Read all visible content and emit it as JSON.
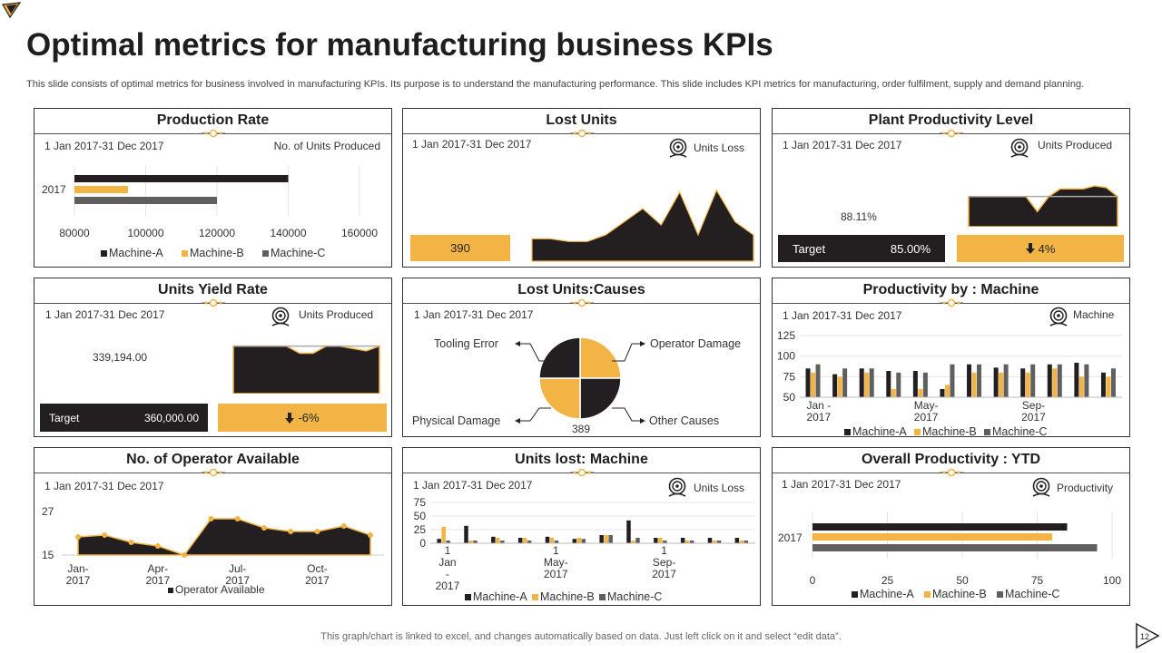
{
  "title": "Optimal metrics for manufacturing business KPIs",
  "subtitle": "This slide consists of optimal metrics for business involved in manufacturing KPIs. Its purpose is to understand the manufacturing performance. This slide includes KPI metrics for manufacturing, order fulfilment, supply and demand planning.",
  "footer": "This graph/chart is linked to excel,  and changes automatically based on data. Just left click on it and select “edit data”.",
  "page_number": "12",
  "colors": {
    "dark": "#231f20",
    "gold": "#f2b445",
    "gray": "#5f5f5f"
  },
  "panels": {
    "production_rate": {
      "title": "Production Rate",
      "date": "1 Jan 2017-31 Dec 2017",
      "label": "No. of Units Produced"
    },
    "lost_units": {
      "title": "Lost Units",
      "date": "1 Jan 2017-31 Dec 2017",
      "label": "Units Loss",
      "icon": "target-icon",
      "value": "390"
    },
    "plant_productivity": {
      "title": "Plant Productivity Level",
      "date": "1 Jan 2017-31 Dec 2017",
      "label": "Units Produced",
      "icon": "target-icon",
      "value": "88.11%",
      "target_label": "Target",
      "target_value": "85.00%",
      "change": "4%"
    },
    "units_yield": {
      "title": "Units Yield Rate",
      "date": "1 Jan 2017-31 Dec 2017",
      "label": "Units Produced",
      "icon": "target-icon",
      "value": "339,194.00",
      "target_label": "Target",
      "target_value": "360,000.00",
      "change": "-6%"
    },
    "lost_causes": {
      "title": "Lost Units:Causes",
      "date": "1 Jan 2017-31 Dec 2017",
      "causes": [
        "Tooling Error",
        "Operator Damage",
        "Physical Damage",
        "Other Causes"
      ],
      "total": "389"
    },
    "prod_machine": {
      "title": "Productivity by : Machine",
      "date": "1 Jan 2017-31 Dec 2017",
      "label": "Machine",
      "icon": "target-icon"
    },
    "operators": {
      "title": "No. of Operator Available",
      "date": "1 Jan 2017-31 Dec 2017"
    },
    "units_lost_machine": {
      "title": "Units lost: Machine",
      "date": "1 Jan 2017-31 Dec 2017",
      "label": "Units Loss",
      "icon": "target-icon"
    },
    "overall": {
      "title": "Overall Productivity : YTD",
      "date": "1 Jan 2017-31 Dec 2017",
      "label": "Productivity",
      "icon": "target-icon"
    }
  },
  "chart_data": [
    {
      "id": "production_rate",
      "type": "bar",
      "orientation": "horizontal",
      "categories": [
        "2017"
      ],
      "series": [
        {
          "name": "Machine-A",
          "values": [
            140000
          ]
        },
        {
          "name": "Machine-B",
          "values": [
            95000
          ]
        },
        {
          "name": "Machine-C",
          "values": [
            120000
          ]
        }
      ],
      "xlim": [
        80000,
        160000
      ],
      "xticks": [
        "80000",
        "100000",
        "120000",
        "140000",
        "160000"
      ],
      "legend": "bottom"
    },
    {
      "id": "lost_units",
      "type": "area",
      "values": [
        34,
        34,
        30,
        30,
        40,
        60,
        80,
        55,
        105,
        40,
        108,
        60,
        40
      ]
    },
    {
      "id": "plant_productivity",
      "type": "area",
      "values": [
        90,
        90,
        90,
        90,
        90,
        90,
        80,
        90,
        95,
        95,
        95,
        97,
        96,
        90
      ]
    },
    {
      "id": "units_yield",
      "type": "area",
      "values": [
        100,
        100,
        100,
        100,
        100,
        85,
        85,
        100,
        100,
        95,
        90,
        100
      ]
    },
    {
      "id": "lost_causes",
      "type": "pie",
      "categories": [
        "Tooling Error",
        "Operator Damage",
        "Other Causes",
        "Physical Damage"
      ],
      "values": [
        25,
        25,
        25,
        25
      ]
    },
    {
      "id": "prod_machine",
      "type": "bar",
      "x_ticks": [
        "Jan -\n2017",
        "May-\n2017",
        "Sep-\n2017"
      ],
      "ylim": [
        50,
        125
      ],
      "yticks": [
        "50",
        "75",
        "100",
        "125"
      ],
      "series": [
        {
          "name": "Machine-A",
          "values": [
            85,
            78,
            85,
            82,
            82,
            60,
            90,
            86,
            85,
            90,
            92,
            80
          ]
        },
        {
          "name": "Machine-B",
          "values": [
            80,
            75,
            80,
            60,
            60,
            65,
            80,
            80,
            80,
            85,
            75,
            75
          ]
        },
        {
          "name": "Machine-C",
          "values": [
            90,
            85,
            85,
            80,
            80,
            90,
            90,
            90,
            90,
            90,
            90,
            85
          ]
        }
      ],
      "legend": "bottom"
    },
    {
      "id": "operators",
      "type": "area",
      "x_ticks": [
        "Jan-\n2017",
        "Apr-\n2017",
        "Jul-\n2017",
        "Oct-\n2017"
      ],
      "ylim": [
        15,
        27
      ],
      "yticks": [
        "15",
        "27"
      ],
      "series": [
        {
          "name": "Operator Available",
          "values": [
            20,
            20.5,
            18.5,
            17.5,
            15,
            25,
            25,
            22.5,
            21.5,
            21.5,
            23,
            20.5
          ]
        }
      ],
      "legend": "bottom"
    },
    {
      "id": "units_lost_machine",
      "type": "bar",
      "x_ticks": [
        "1\nJan\n-\n2017",
        "1\nMay-\n2017",
        "1\nSep-\n2017"
      ],
      "ylim": [
        0,
        75
      ],
      "yticks": [
        "0",
        "25",
        "50",
        "75"
      ],
      "series": [
        {
          "name": "Machine-A",
          "values": [
            8,
            32,
            12,
            10,
            12,
            8,
            15,
            42,
            10,
            10,
            10,
            10
          ]
        },
        {
          "name": "Machine-B",
          "values": [
            30,
            5,
            10,
            10,
            10,
            10,
            15,
            5,
            10,
            5,
            5,
            5
          ]
        },
        {
          "name": "Machine-C",
          "values": [
            5,
            5,
            5,
            5,
            5,
            8,
            15,
            10,
            5,
            5,
            5,
            5
          ]
        }
      ],
      "legend": "bottom"
    },
    {
      "id": "overall",
      "type": "bar",
      "orientation": "horizontal",
      "categories": [
        "2017"
      ],
      "series": [
        {
          "name": "Machine-A",
          "values": [
            85
          ]
        },
        {
          "name": "Machine-B",
          "values": [
            80
          ]
        },
        {
          "name": "Machine-C",
          "values": [
            95
          ]
        }
      ],
      "xlim": [
        0,
        100
      ],
      "xticks": [
        "0",
        "25",
        "50",
        "75",
        "100"
      ],
      "legend": "bottom"
    }
  ]
}
